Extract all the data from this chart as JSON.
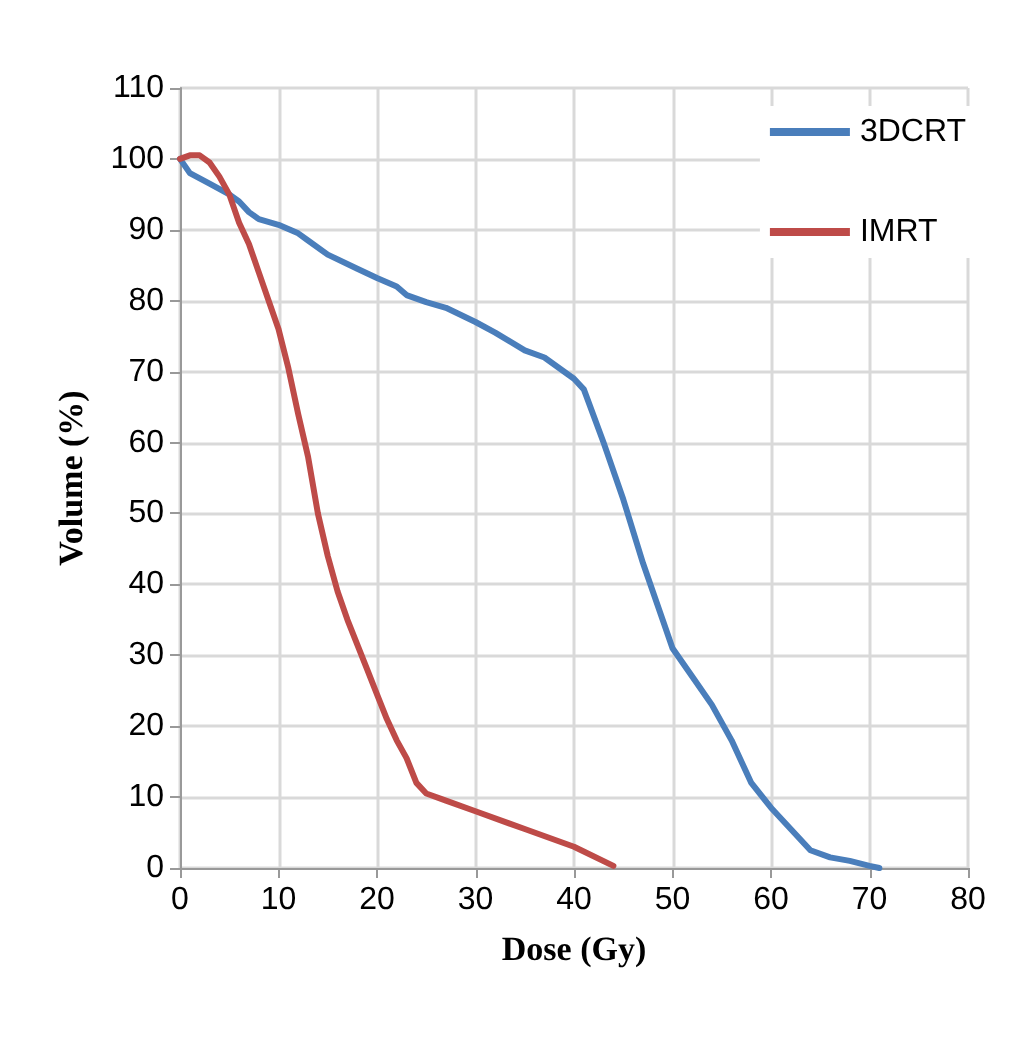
{
  "chart_data": {
    "type": "line",
    "xlabel": "Dose (Gy)",
    "ylabel": "Volume (%)",
    "xlim": [
      0,
      80
    ],
    "xticks": [
      0,
      10,
      20,
      30,
      40,
      50,
      60,
      70,
      80
    ],
    "ylim": [
      0,
      110
    ],
    "yticks": [
      0,
      10,
      20,
      30,
      40,
      50,
      60,
      70,
      80,
      90,
      100,
      110
    ],
    "grid": true,
    "legend": "top right",
    "marker": "none",
    "line_style": "solid",
    "series": [
      {
        "name": "3DCRT",
        "color": "#4a7ebb",
        "x": [
          0,
          1,
          3,
          5,
          6,
          7,
          8,
          10,
          12,
          13,
          15,
          18,
          20,
          22,
          23,
          25,
          27,
          30,
          32,
          35,
          37,
          40,
          41,
          43,
          45,
          47,
          49,
          50,
          52,
          54,
          56,
          58,
          60,
          62,
          64,
          66,
          68,
          70,
          71
        ],
        "values": [
          100,
          98,
          96.5,
          95,
          94,
          92.5,
          91.5,
          90.7,
          89.5,
          88.5,
          86.5,
          84.5,
          83.2,
          82,
          80.8,
          79.8,
          79,
          77,
          75.5,
          73,
          72,
          69,
          67.5,
          60,
          52,
          43,
          35,
          31,
          27,
          23,
          18,
          12,
          8.5,
          5.5,
          2.5,
          1.5,
          1,
          0.3,
          0
        ]
      },
      {
        "name": "IMRT",
        "color": "#be4b48",
        "x": [
          0,
          1,
          2,
          3,
          4,
          5,
          6,
          7,
          8,
          9,
          10,
          11,
          12,
          13,
          14,
          15,
          16,
          17,
          18,
          19,
          20,
          21,
          22,
          23,
          24,
          25,
          27,
          30,
          35,
          40,
          44
        ],
        "values": [
          100,
          100.5,
          100.5,
          99.5,
          97.5,
          95,
          91,
          88,
          84,
          80,
          76,
          70.5,
          64,
          58,
          50,
          44,
          39,
          35,
          31.5,
          28,
          24.5,
          21,
          18,
          15.5,
          12,
          10.5,
          9.5,
          8,
          5.5,
          3,
          0.3
        ]
      }
    ]
  }
}
